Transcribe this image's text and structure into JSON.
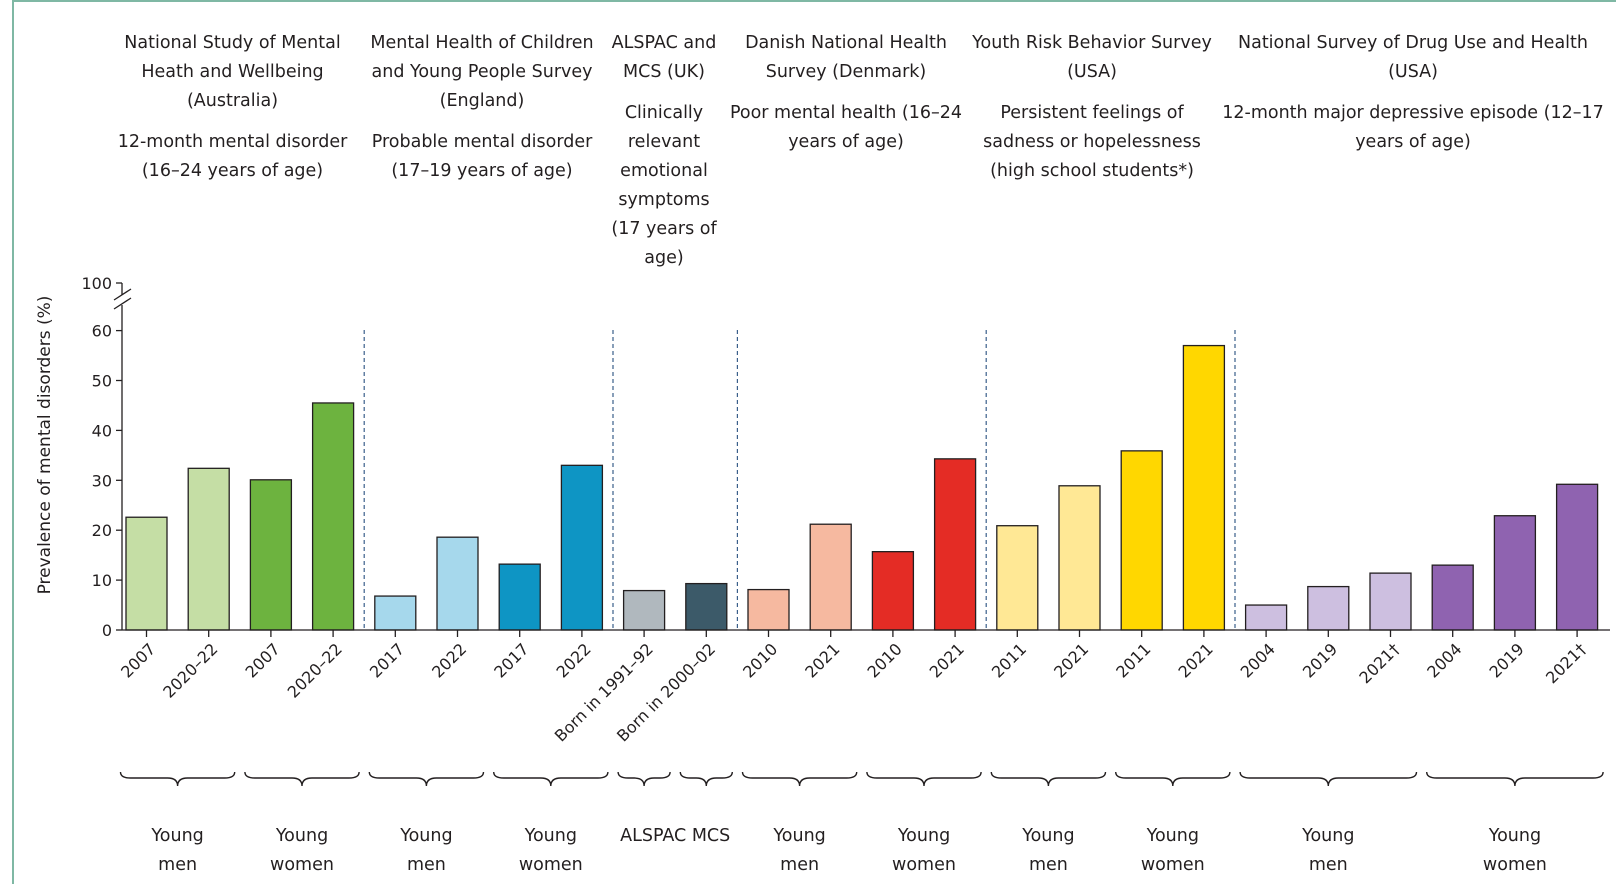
{
  "chart_data": {
    "type": "bar",
    "ylabel": "Prevalence of mental disorders (%)",
    "ylim": [
      0,
      60
    ],
    "yticks": [
      0,
      10,
      20,
      30,
      40,
      50,
      60
    ],
    "ybreak_top_label": "100",
    "studies": [
      {
        "name": "National Study of Mental Heath and Wellbeing (Australia)",
        "measure": "12-month mental disorder (16–24 years of age)"
      },
      {
        "name": "Mental Health of Children and Young People Survey (England)",
        "measure": "Probable mental disorder (17–19 years of age)"
      },
      {
        "name": "ALSPAC and MCS (UK)",
        "measure": "Clinically relevant emotional symptoms (17 years of age)"
      },
      {
        "name": "Danish National Health Survey (Denmark)",
        "measure": "Poor mental health (16–24 years of age)"
      },
      {
        "name": "Youth Risk Behavior Survey (USA)",
        "measure": "Persistent feelings of sadness or hopelessness (high school students*)"
      },
      {
        "name": "National Survey of Drug Use and Health (USA)",
        "measure": "12-month major depressive episode (12–17 years of age)"
      }
    ],
    "bars": [
      {
        "label": "2007",
        "value": 22.6,
        "color": "#c5dea5",
        "study": 0,
        "group": "Young men"
      },
      {
        "label": "2020–22",
        "value": 32.4,
        "color": "#c5dea5",
        "study": 0,
        "group": "Young men"
      },
      {
        "label": "2007",
        "value": 30.1,
        "color": "#6db33f",
        "study": 0,
        "group": "Young women"
      },
      {
        "label": "2020–22",
        "value": 45.5,
        "color": "#6db33f",
        "study": 0,
        "group": "Young women"
      },
      {
        "label": "2017",
        "value": 6.8,
        "color": "#a6d8ec",
        "study": 1,
        "group": "Young men"
      },
      {
        "label": "2022",
        "value": 18.6,
        "color": "#a6d8ec",
        "study": 1,
        "group": "Young men"
      },
      {
        "label": "2017",
        "value": 13.2,
        "color": "#0e95c4",
        "study": 1,
        "group": "Young women"
      },
      {
        "label": "2022",
        "value": 33.0,
        "color": "#0e95c4",
        "study": 1,
        "group": "Young women"
      },
      {
        "label": "Born in 1991–92",
        "value": 7.9,
        "color": "#b0b8be",
        "study": 2,
        "group": "ALSPAC"
      },
      {
        "label": "Born in 2000–02",
        "value": 9.3,
        "color": "#3c5a69",
        "study": 2,
        "group": "MCS"
      },
      {
        "label": "2010",
        "value": 8.1,
        "color": "#f6b9a0",
        "study": 3,
        "group": "Young men"
      },
      {
        "label": "2021",
        "value": 21.2,
        "color": "#f6b9a0",
        "study": 3,
        "group": "Young men"
      },
      {
        "label": "2010",
        "value": 15.7,
        "color": "#e42c25",
        "study": 3,
        "group": "Young women"
      },
      {
        "label": "2021",
        "value": 34.3,
        "color": "#e42c25",
        "study": 3,
        "group": "Young women"
      },
      {
        "label": "2011",
        "value": 20.9,
        "color": "#ffe895",
        "study": 4,
        "group": "Young men"
      },
      {
        "label": "2021",
        "value": 28.9,
        "color": "#ffe895",
        "study": 4,
        "group": "Young men"
      },
      {
        "label": "2011",
        "value": 35.9,
        "color": "#ffd700",
        "study": 4,
        "group": "Young women"
      },
      {
        "label": "2021",
        "value": 57.0,
        "color": "#ffd700",
        "study": 4,
        "group": "Young women"
      },
      {
        "label": "2004",
        "value": 5.0,
        "color": "#cdbfe0",
        "study": 5,
        "group": "Young men"
      },
      {
        "label": "2019",
        "value": 8.7,
        "color": "#cdbfe0",
        "study": 5,
        "group": "Young men"
      },
      {
        "label": "2021†",
        "value": 11.4,
        "color": "#cdbfe0",
        "study": 5,
        "group": "Young men"
      },
      {
        "label": "2004",
        "value": 13.0,
        "color": "#8f63b0",
        "study": 5,
        "group": "Young women"
      },
      {
        "label": "2019",
        "value": 22.9,
        "color": "#8f63b0",
        "study": 5,
        "group": "Young women"
      },
      {
        "label": "2021†",
        "value": 29.2,
        "color": "#8f63b0",
        "study": 5,
        "group": "Young women"
      }
    ],
    "groups": [
      {
        "line1": "Young",
        "line2": "men"
      },
      {
        "line1": "Young",
        "line2": "women"
      },
      {
        "line1": "Young",
        "line2": "men"
      },
      {
        "line1": "Young",
        "line2": "women"
      },
      {
        "line1": "ALSPAC MCS",
        "line2": ""
      },
      {
        "line1": "Young",
        "line2": "men"
      },
      {
        "line1": "Young",
        "line2": "women"
      },
      {
        "line1": "Young",
        "line2": "men"
      },
      {
        "line1": "Young",
        "line2": "women"
      },
      {
        "line1": "Young",
        "line2": "men"
      },
      {
        "line1": "Young",
        "line2": "women"
      }
    ]
  }
}
